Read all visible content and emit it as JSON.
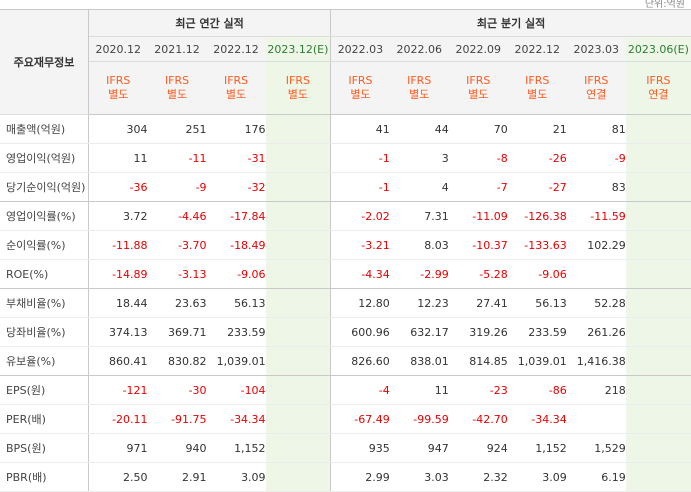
{
  "unit_note": "단위:억원",
  "header": {
    "row_label": "주요재무정보",
    "annual_title": "최근 연간 실적",
    "quarter_title": "최근 분기 실적",
    "periods": [
      "2020.12",
      "2021.12",
      "2022.12",
      "2023.12(E)",
      "2022.03",
      "2022.06",
      "2022.09",
      "2022.12",
      "2023.03",
      "2023.06(E)"
    ],
    "acc_line1": [
      "IFRS",
      "IFRS",
      "IFRS",
      "IFRS",
      "IFRS",
      "IFRS",
      "IFRS",
      "IFRS",
      "IFRS",
      "IFRS"
    ],
    "acc_line2": [
      "별도",
      "별도",
      "별도",
      "별도",
      "별도",
      "별도",
      "별도",
      "별도",
      "연결",
      "연결"
    ]
  },
  "rows": [
    {
      "label": "매출액(억원)",
      "values": [
        "304",
        "251",
        "176",
        "",
        "41",
        "44",
        "70",
        "21",
        "81",
        ""
      ]
    },
    {
      "label": "영업이익(억원)",
      "values": [
        "11",
        "-11",
        "-31",
        "",
        "-1",
        "3",
        "-8",
        "-26",
        "-9",
        ""
      ]
    },
    {
      "label": "당기순이익(억원)",
      "values": [
        "-36",
        "-9",
        "-32",
        "",
        "-1",
        "4",
        "-7",
        "-27",
        "83",
        ""
      ]
    },
    {
      "label": "영업이익률(%)",
      "values": [
        "3.72",
        "-4.46",
        "-17.84",
        "",
        "-2.02",
        "7.31",
        "-11.09",
        "-126.38",
        "-11.59",
        ""
      ]
    },
    {
      "label": "순이익률(%)",
      "values": [
        "-11.88",
        "-3.70",
        "-18.49",
        "",
        "-3.21",
        "8.03",
        "-10.37",
        "-133.63",
        "102.29",
        ""
      ]
    },
    {
      "label": "ROE(%)",
      "values": [
        "-14.89",
        "-3.13",
        "-9.06",
        "",
        "-4.34",
        "-2.99",
        "-5.28",
        "-9.06",
        "",
        ""
      ]
    },
    {
      "label": "부채비율(%)",
      "values": [
        "18.44",
        "23.63",
        "56.13",
        "",
        "12.80",
        "12.23",
        "27.41",
        "56.13",
        "52.28",
        ""
      ]
    },
    {
      "label": "당좌비율(%)",
      "values": [
        "374.13",
        "369.71",
        "233.59",
        "",
        "600.96",
        "632.17",
        "319.26",
        "233.59",
        "261.26",
        ""
      ]
    },
    {
      "label": "유보율(%)",
      "values": [
        "860.41",
        "830.82",
        "1,039.01",
        "",
        "826.60",
        "838.01",
        "814.85",
        "1,039.01",
        "1,416.38",
        ""
      ]
    },
    {
      "label": "EPS(원)",
      "values": [
        "-121",
        "-30",
        "-104",
        "",
        "-4",
        "11",
        "-23",
        "-86",
        "218",
        ""
      ]
    },
    {
      "label": "PER(배)",
      "values": [
        "-20.11",
        "-91.75",
        "-34.34",
        "",
        "-67.49",
        "-99.59",
        "-42.70",
        "-34.34",
        "",
        ""
      ]
    },
    {
      "label": "BPS(원)",
      "values": [
        "971",
        "940",
        "1,152",
        "",
        "935",
        "947",
        "924",
        "1,152",
        "1,529",
        ""
      ]
    },
    {
      "label": "PBR(배)",
      "values": [
        "2.50",
        "2.91",
        "3.09",
        "",
        "2.99",
        "3.03",
        "2.32",
        "3.09",
        "6.19",
        ""
      ]
    }
  ],
  "colors": {
    "negative": "#e60000",
    "accounting": "#ff5a1f",
    "estimate_bg": "#eef6e8",
    "estimate_text": "#2e7d32"
  }
}
